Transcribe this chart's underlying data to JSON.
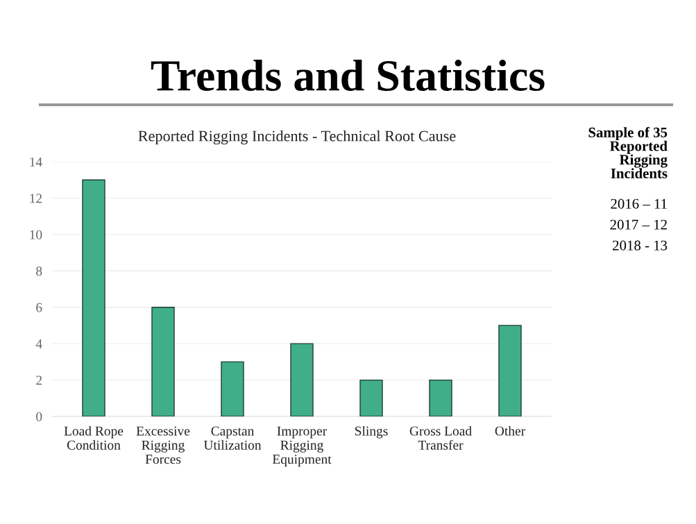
{
  "chart_data": {
    "type": "bar",
    "title": "Trends and Statistics",
    "subtitle": "Reported Rigging Incidents - Technical Root Cause",
    "categories": [
      "Load Rope\nCondition",
      "Excessive\nRigging\nForces",
      "Capstan\nUtilization",
      "Improper\nRigging\nEquipment",
      "Slings",
      "Gross Load\nTransfer",
      "Other"
    ],
    "values": [
      13,
      6,
      3,
      4,
      2,
      2,
      5
    ],
    "color": "#41ae8a",
    "ylim": [
      0,
      14
    ],
    "yticks": [
      0,
      2,
      4,
      6,
      8,
      10,
      12,
      14
    ],
    "grid": "y",
    "legend": false,
    "annotations": [
      "Sample of 35\nReported\nRigging\nIncidents",
      "2016 – 11",
      "2017 – 12",
      "2018 - 13"
    ]
  }
}
